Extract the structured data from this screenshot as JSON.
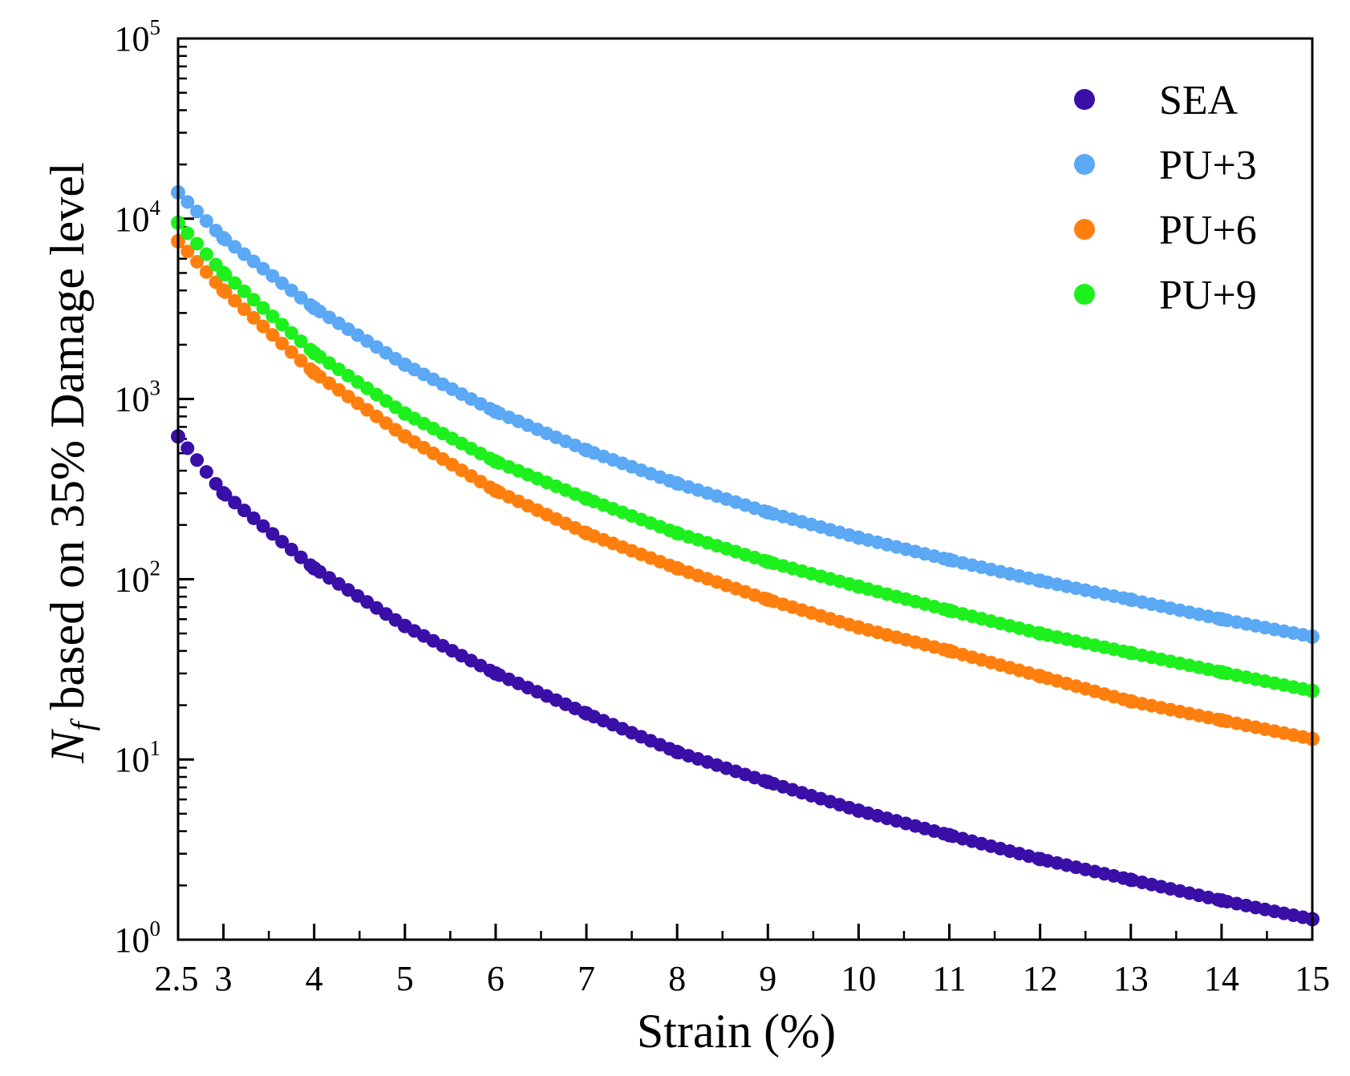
{
  "chart_data": {
    "type": "scatter",
    "title": "",
    "xlabel": "Strain (%)",
    "ylabel": {
      "symbol": "N",
      "subscript": "f",
      "rest": " based on 35% Damage level"
    },
    "xlim": [
      2.5,
      15
    ],
    "ylim": [
      1,
      100000
    ],
    "yscale": "log",
    "x_ticks": [
      {
        "value": 2.5,
        "label": "2.5"
      },
      {
        "value": 3,
        "label": "3"
      },
      {
        "value": 4,
        "label": "4"
      },
      {
        "value": 5,
        "label": "5"
      },
      {
        "value": 6,
        "label": "6"
      },
      {
        "value": 7,
        "label": "7"
      },
      {
        "value": 8,
        "label": "8"
      },
      {
        "value": 9,
        "label": "9"
      },
      {
        "value": 10,
        "label": "10"
      },
      {
        "value": 11,
        "label": "11"
      },
      {
        "value": 12,
        "label": "12"
      },
      {
        "value": 13,
        "label": "13"
      },
      {
        "value": 14,
        "label": "14"
      },
      {
        "value": 15,
        "label": "15"
      }
    ],
    "y_ticks": [
      {
        "value": 1,
        "base": "10",
        "exp": "0"
      },
      {
        "value": 10,
        "base": "10",
        "exp": "1"
      },
      {
        "value": 100,
        "base": "10",
        "exp": "2"
      },
      {
        "value": 1000,
        "base": "10",
        "exp": "3"
      },
      {
        "value": 10000,
        "base": "10",
        "exp": "4"
      },
      {
        "value": 100000,
        "base": "10",
        "exp": "5"
      }
    ],
    "legend_position": "top-right",
    "x": [
      2.5,
      3,
      4,
      5,
      6,
      7,
      8,
      9,
      10,
      11,
      12,
      13,
      14,
      15
    ],
    "series": [
      {
        "name": "SEA",
        "color": "#3a0fa8",
        "values": [
          620,
          300,
          115,
          55,
          30,
          18,
          11,
          7.5,
          5.2,
          3.8,
          2.8,
          2.15,
          1.65,
          1.3
        ]
      },
      {
        "name": "PU+3",
        "color": "#5ba8f5",
        "values": [
          14000,
          7800,
          3200,
          1550,
          850,
          520,
          340,
          235,
          170,
          128,
          98,
          77,
          60,
          48
        ]
      },
      {
        "name": "PU+6",
        "color": "#ff7f0e",
        "values": [
          7500,
          4000,
          1400,
          620,
          310,
          180,
          115,
          77,
          54,
          40,
          29,
          21,
          16.5,
          13
        ]
      },
      {
        "name": "PU+9",
        "color": "#1ef01e",
        "values": [
          9500,
          5000,
          1800,
          830,
          450,
          280,
          180,
          125,
          91,
          67,
          50,
          39,
          30.5,
          24
        ]
      }
    ]
  }
}
